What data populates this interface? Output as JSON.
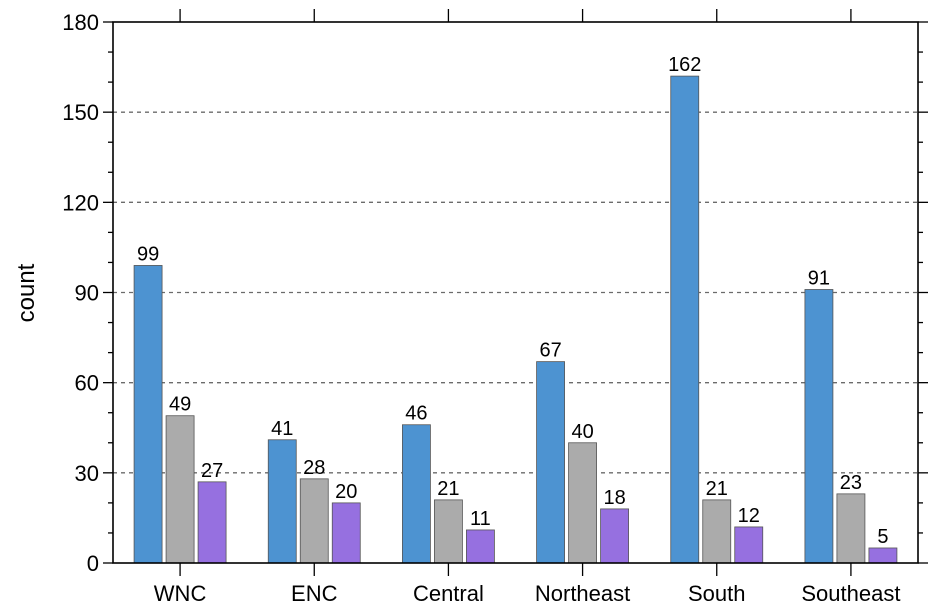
{
  "chart_data": {
    "type": "bar",
    "title": "",
    "xlabel": "",
    "ylabel": "count",
    "ylim": [
      0,
      180
    ],
    "yticks": [
      0,
      30,
      60,
      90,
      120,
      150,
      180
    ],
    "grid": "horizontal dashed at major ticks",
    "legend": "none",
    "categories": [
      "WNC",
      "ENC",
      "Central",
      "Northeast",
      "South",
      "Southeast"
    ],
    "series": [
      {
        "color": "#4d93d1",
        "values": [
          99,
          41,
          46,
          67,
          162,
          91
        ]
      },
      {
        "color": "#ababab",
        "values": [
          49,
          28,
          21,
          40,
          21,
          23
        ]
      },
      {
        "color": "#9670e0",
        "values": [
          27,
          20,
          11,
          18,
          12,
          5
        ]
      }
    ]
  }
}
